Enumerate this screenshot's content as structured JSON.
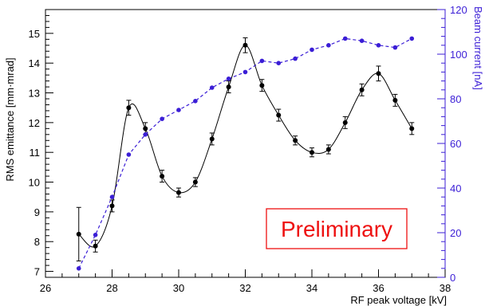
{
  "colors": {
    "emittance": "#000000",
    "beam": "#3b1ed6",
    "badge": "#ee1111"
  },
  "badge": {
    "text": "Preliminary"
  },
  "chart_data": {
    "type": "line",
    "xlabel": "RF peak voltage [kV]",
    "ylabel": "RMS emittance [mm·mrad]",
    "y2label": "Beam current [nA]",
    "xlim": [
      26,
      38
    ],
    "ylim": [
      6.8,
      15.8
    ],
    "y2lim": [
      0,
      120
    ],
    "x_ticks": [
      26,
      28,
      30,
      32,
      34,
      36,
      38
    ],
    "y_ticks": [
      7,
      8,
      9,
      10,
      11,
      12,
      13,
      14,
      15
    ],
    "y2_ticks": [
      0,
      20,
      40,
      60,
      80,
      100,
      120
    ],
    "grid": false,
    "series": [
      {
        "name": "",
        "axis": "left",
        "style": "solid-smooth",
        "x": [
          27,
          27.5,
          28,
          28.5,
          29,
          29.5,
          30,
          30.5,
          31,
          31.5,
          32,
          32.5,
          33,
          33.5,
          34,
          34.5,
          35,
          35.5,
          36,
          36.5,
          37
        ],
        "y": [
          8.25,
          7.85,
          9.2,
          12.5,
          11.8,
          10.2,
          9.65,
          10.0,
          11.45,
          13.2,
          14.6,
          13.25,
          12.25,
          11.4,
          11.0,
          11.1,
          12.0,
          13.1,
          13.65,
          12.75,
          11.8
        ],
        "y_err": [
          0.9,
          0.2,
          0.2,
          0.25,
          0.2,
          0.2,
          0.15,
          0.15,
          0.2,
          0.2,
          0.25,
          0.2,
          0.2,
          0.15,
          0.15,
          0.15,
          0.2,
          0.2,
          0.25,
          0.2,
          0.2
        ]
      },
      {
        "name": "",
        "axis": "right",
        "style": "dashed",
        "x": [
          27,
          27.5,
          28,
          28.5,
          29,
          29.5,
          30,
          30.5,
          31,
          31.5,
          32,
          32.5,
          33,
          33.5,
          34,
          34.5,
          35,
          35.5,
          36,
          36.5,
          37
        ],
        "y": [
          4,
          19,
          36,
          55,
          64,
          71,
          75,
          79,
          85,
          89,
          92,
          97,
          96,
          98,
          102,
          104,
          107,
          106,
          104,
          103,
          107
        ]
      }
    ]
  }
}
